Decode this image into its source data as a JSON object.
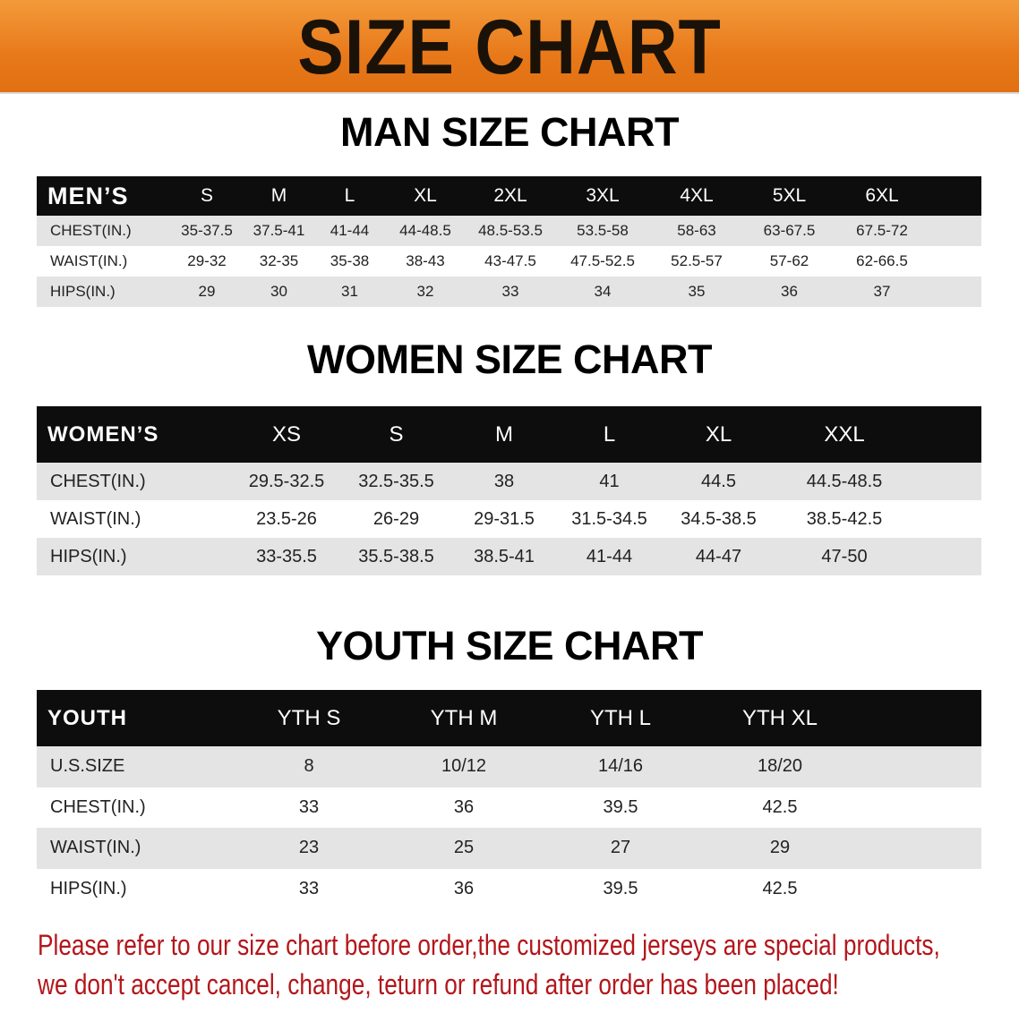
{
  "banner_title": "SIZE CHART",
  "men": {
    "title": "MAN SIZE CHART",
    "header": [
      "MEN’S",
      "S",
      "M",
      "L",
      "XL",
      "2XL",
      "3XL",
      "4XL",
      "5XL",
      "6XL"
    ],
    "rows": [
      [
        "CHEST(IN.)",
        "35-37.5",
        "37.5-41",
        "41-44",
        "44-48.5",
        "48.5-53.5",
        "53.5-58",
        "58-63",
        "63-67.5",
        "67.5-72"
      ],
      [
        "WAIST(IN.)",
        "29-32",
        "32-35",
        "35-38",
        "38-43",
        "43-47.5",
        "47.5-52.5",
        "52.5-57",
        "57-62",
        "62-66.5"
      ],
      [
        "HIPS(IN.)",
        "29",
        "30",
        "31",
        "32",
        "33",
        "34",
        "35",
        "36",
        "37"
      ]
    ]
  },
  "women": {
    "title": "WOMEN SIZE CHART",
    "header": [
      "WOMEN’S",
      "XS",
      "S",
      "M",
      "L",
      "XL",
      "XXL"
    ],
    "rows": [
      [
        "CHEST(IN.)",
        "29.5-32.5",
        "32.5-35.5",
        "38",
        "41",
        "44.5",
        "44.5-48.5"
      ],
      [
        "WAIST(IN.)",
        "23.5-26",
        "26-29",
        "29-31.5",
        "31.5-34.5",
        "34.5-38.5",
        "38.5-42.5"
      ],
      [
        "HIPS(IN.)",
        "33-35.5",
        "35.5-38.5",
        "38.5-41",
        "41-44",
        "44-47",
        "47-50"
      ]
    ]
  },
  "youth": {
    "title": "YOUTH SIZE CHART",
    "header": [
      "YOUTH",
      "YTH S",
      "YTH M",
      "YTH L",
      "YTH XL"
    ],
    "rows": [
      [
        "U.S.SIZE",
        "8",
        "10/12",
        "14/16",
        "18/20"
      ],
      [
        "CHEST(IN.)",
        "33",
        "36",
        "39.5",
        "42.5"
      ],
      [
        "WAIST(IN.)",
        "23",
        "25",
        "27",
        "29"
      ],
      [
        "HIPS(IN.)",
        "33",
        "36",
        "39.5",
        "42.5"
      ]
    ]
  },
  "notice": {
    "line1": "Please refer to our size chart before order,the customized jerseys are special products,",
    "line2": "we don't accept cancel, change, teturn or refund after order has been placed!"
  },
  "colors": {
    "banner": "#e8791a",
    "header_row": "#0d0d0d",
    "stripe": "#e4e4e4",
    "notice": "#b3161b"
  }
}
